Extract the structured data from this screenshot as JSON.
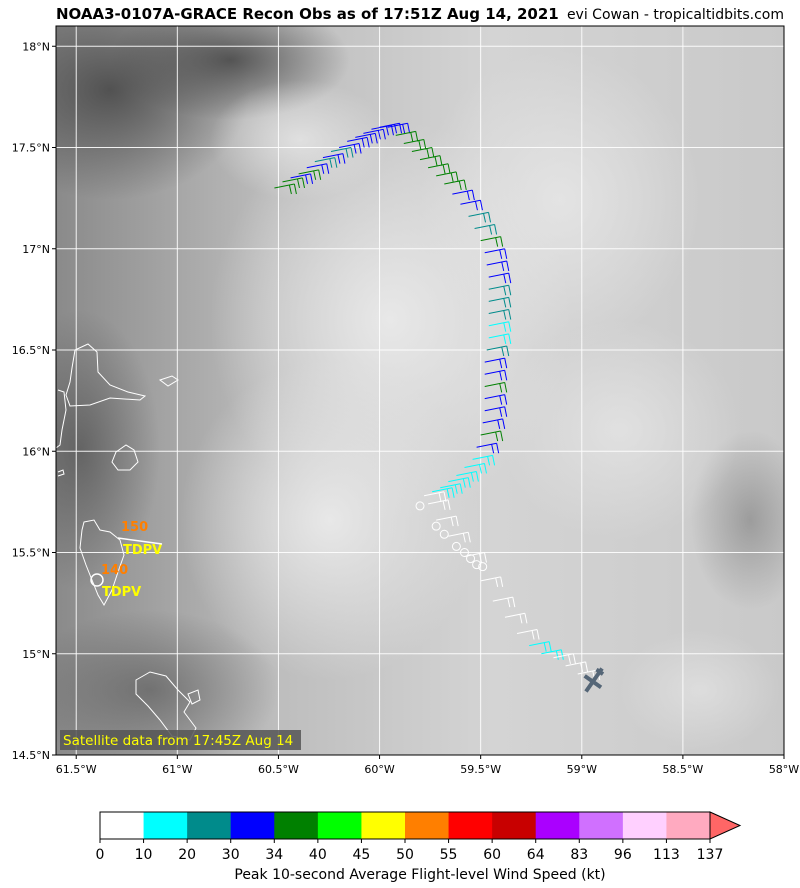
{
  "header": {
    "title": "NOAA3-0107A-GRACE Recon Obs as of 17:51Z Aug 14, 2021",
    "credit": "evi Cowan - tropicaltidbits.com"
  },
  "map": {
    "y_ticks": [
      "18°N",
      "17.5°N",
      "17°N",
      "16.5°N",
      "16°N",
      "15.5°N",
      "15°N",
      "14.5°N"
    ],
    "x_ticks": [
      "61.5°W",
      "61°W",
      "60.5°W",
      "60°W",
      "59.5°W",
      "59°W",
      "58.5°W",
      "58°W"
    ],
    "lon_range": [
      -61.6,
      -58.0
    ],
    "lat_range": [
      14.5,
      18.1
    ],
    "satellite_note": "Satellite data from 17:45Z Aug 14",
    "sfmr_labels": [
      {
        "value": "150",
        "tag": "TDPV"
      },
      {
        "value": "140",
        "tag": "TDPV"
      }
    ]
  },
  "colorbar": {
    "title": "Peak 10-second Average Flight-level Wind Speed (kt)",
    "ticks": [
      "0",
      "10",
      "20",
      "30",
      "34",
      "40",
      "45",
      "50",
      "55",
      "60",
      "64",
      "83",
      "96",
      "113",
      "137"
    ],
    "colors": [
      "#ffffff",
      "#00ffff",
      "#008b8b",
      "#0000ff",
      "#008000",
      "#00ff00",
      "#ffff00",
      "#ff7f00",
      "#ff0000",
      "#c80000",
      "#aa00ff",
      "#d070ff",
      "#ffd0ff",
      "#ffaac0"
    ],
    "extend_color": "#ff6666"
  },
  "colors": {
    "orange_label": "#ff7f00",
    "yellow_label": "#ffff00",
    "coast": "#ffffff"
  }
}
